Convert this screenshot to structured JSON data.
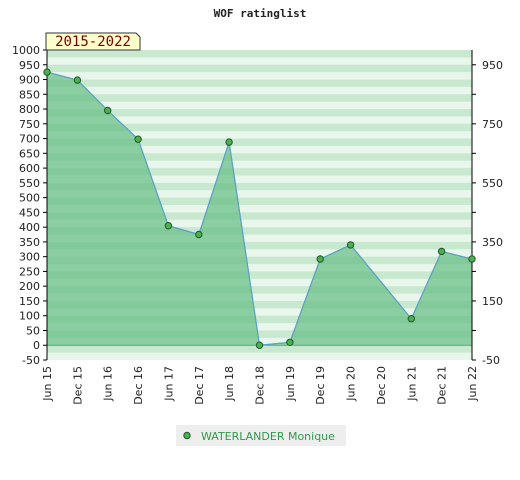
{
  "chart_data": {
    "type": "area",
    "title": "WOF ratinglist",
    "period_badge": "2015-2022",
    "x": [
      "Jun 15",
      "Dec 15",
      "Jun 16",
      "Dec 16",
      "Jun 17",
      "Dec 17",
      "Jun 18",
      "Dec 18",
      "Jun 19",
      "Dec 19",
      "Jun 20",
      "Dec 20",
      "Jun 21",
      "Dec 21",
      "Jun 22"
    ],
    "series": [
      {
        "name": "WATERLANDER Monique",
        "points": [
          {
            "x": "Jun 15",
            "y": 925
          },
          {
            "x": "Dec 15",
            "y": 898
          },
          {
            "x": "Jun 16",
            "y": 795
          },
          {
            "x": "Dec 16",
            "y": 698
          },
          {
            "x": "Jun 17",
            "y": 405
          },
          {
            "x": "Dec 17",
            "y": 375
          },
          {
            "x": "Jun 18",
            "y": 688
          },
          {
            "x": "Dec 18",
            "y": 0
          },
          {
            "x": "Jun 19",
            "y": 10
          },
          {
            "x": "Dec 19",
            "y": 292
          },
          {
            "x": "Jun 20",
            "y": 340
          },
          {
            "x": "Jun 21",
            "y": 90
          },
          {
            "x": "Dec 21",
            "y": 318
          },
          {
            "x": "Jun 22",
            "y": 292
          }
        ]
      }
    ],
    "y_left": {
      "range": [
        -50,
        1000
      ],
      "ticks": [
        1000,
        950,
        900,
        850,
        800,
        750,
        700,
        650,
        600,
        550,
        500,
        450,
        400,
        350,
        300,
        250,
        200,
        150,
        100,
        50,
        0,
        -50
      ]
    },
    "y_right": {
      "ticks": [
        950,
        750,
        550,
        350,
        150,
        -50
      ]
    },
    "legend_position": "bottom-center",
    "colors": {
      "fill": "#6cc08a",
      "line": "#5aa0c8",
      "marker": "#4caf50",
      "band_dark": "#c8e8d0",
      "band_light": "#e8f6ec",
      "badge_bg": "#ffffcc"
    }
  }
}
